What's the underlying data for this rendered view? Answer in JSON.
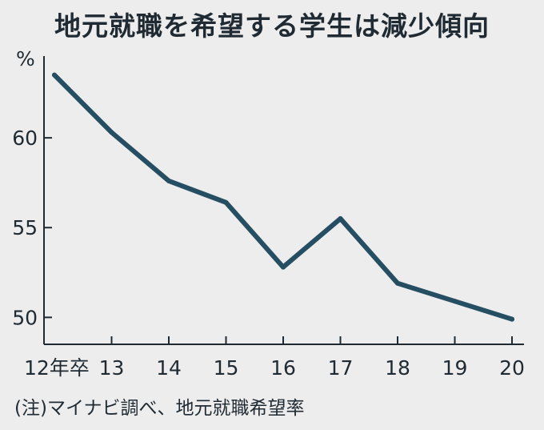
{
  "chart_data": {
    "type": "line",
    "title": "地元就職を希望する学生は減少傾向",
    "note": "(注)マイナビ調べ、地元就職希望率",
    "ylabel": "%",
    "categories": [
      "12年卒",
      "13",
      "14",
      "15",
      "16",
      "17",
      "18",
      "19",
      "20"
    ],
    "series": [
      {
        "values": [
          63.5,
          60.3,
          57.6,
          56.4,
          52.8,
          55.5,
          51.9,
          50.9,
          49.9
        ]
      }
    ],
    "ylim": [
      48.5,
      65
    ],
    "yticks": [
      50,
      55,
      60
    ],
    "grid": false,
    "line_color": "#264e63",
    "axis_color": "#1f2a33"
  }
}
